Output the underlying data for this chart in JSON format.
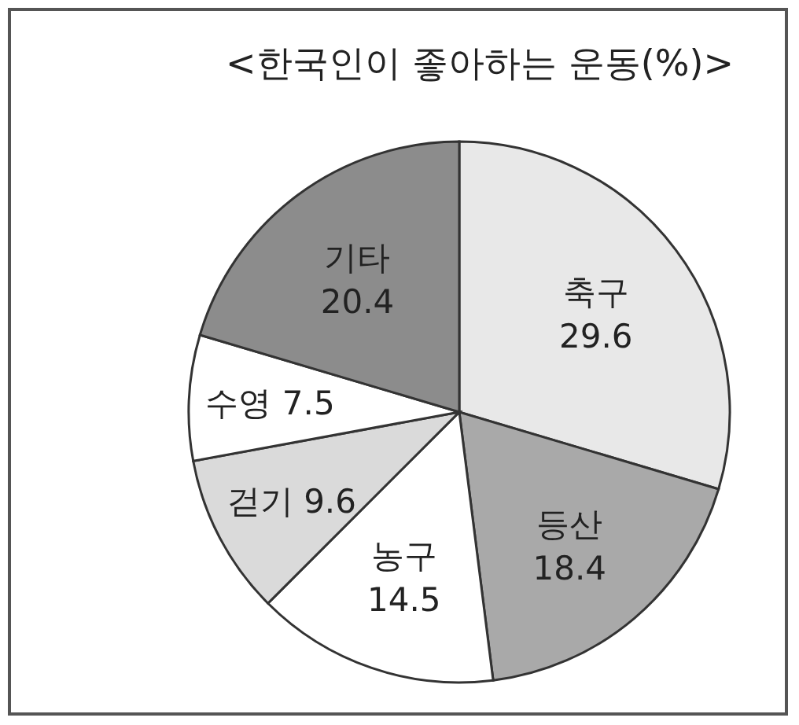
{
  "chart_data": {
    "type": "pie",
    "title": "<한국인이 좋아하는 운동(%)>",
    "categories": [
      "축구",
      "등산",
      "농구",
      "걷기",
      "수영",
      "기타"
    ],
    "values": [
      29.6,
      18.4,
      14.5,
      9.6,
      7.5,
      20.4
    ],
    "colors": [
      "#e8e8e8",
      "#a9a9a9",
      "#ffffff",
      "#dadada",
      "#ffffff",
      "#8c8c8c"
    ],
    "data_labels": true
  }
}
